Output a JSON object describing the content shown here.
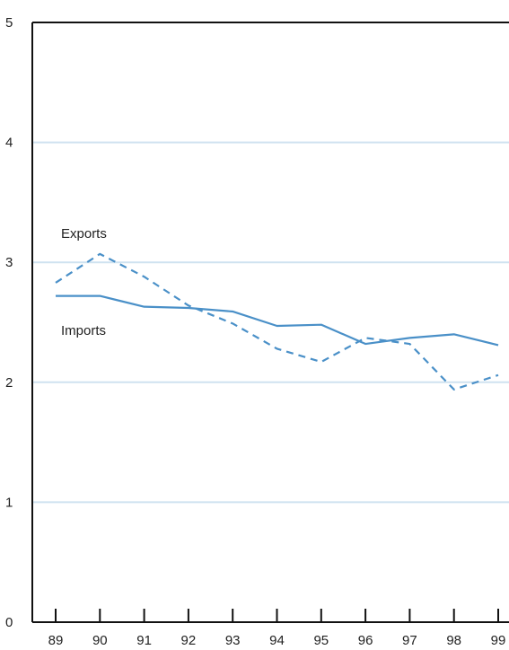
{
  "chart_data": {
    "type": "line",
    "title": "",
    "xlabel": "",
    "ylabel": "",
    "categories": [
      "89",
      "90",
      "91",
      "92",
      "93",
      "94",
      "95",
      "96",
      "97",
      "98",
      "99"
    ],
    "ylim": [
      0,
      5
    ],
    "yticks": [
      "0",
      "1",
      "2",
      "3",
      "4",
      "5"
    ],
    "grid": true,
    "series": [
      {
        "name": "Exports",
        "style": "dashed",
        "color": "#4a90c8",
        "values": [
          2.83,
          3.07,
          2.88,
          2.64,
          2.49,
          2.28,
          2.17,
          2.37,
          2.32,
          1.94,
          2.06
        ]
      },
      {
        "name": "Imports",
        "style": "solid",
        "color": "#4a90c8",
        "values": [
          2.72,
          2.72,
          2.63,
          2.62,
          2.59,
          2.47,
          2.48,
          2.32,
          2.37,
          2.4,
          2.31
        ]
      }
    ],
    "colors": {
      "grid": "#cfe2f0",
      "axis": "#111111",
      "line": "#4a90c8"
    }
  }
}
